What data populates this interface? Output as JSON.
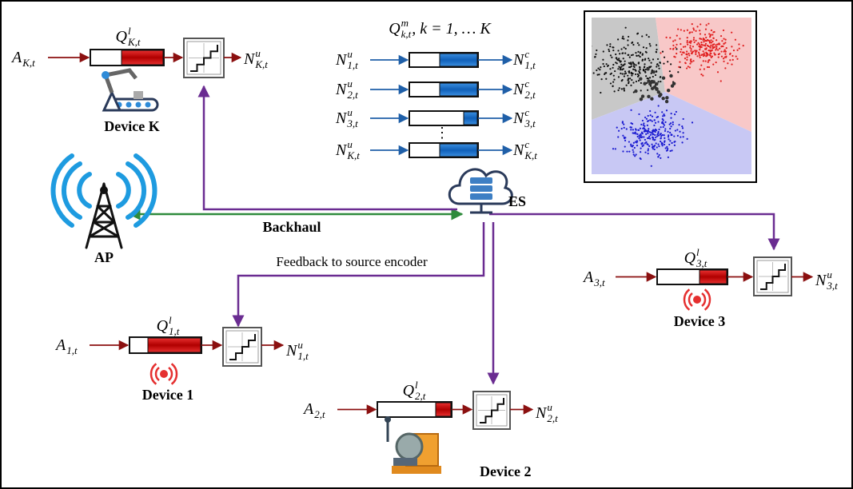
{
  "devices": [
    {
      "name": "Device K",
      "arrival": {
        "base": "A",
        "sub": "K,t"
      },
      "queue": {
        "base": "Q",
        "sup": "l",
        "sub": "K,t"
      },
      "output": {
        "base": "N",
        "sup": "u",
        "sub": "K,t"
      }
    },
    {
      "name": "Device 1",
      "arrival": {
        "base": "A",
        "sub": "1,t"
      },
      "queue": {
        "base": "Q",
        "sup": "l",
        "sub": "1,t"
      },
      "output": {
        "base": "N",
        "sup": "u",
        "sub": "1,t"
      }
    },
    {
      "name": "Device 2",
      "arrival": {
        "base": "A",
        "sub": "2,t"
      },
      "queue": {
        "base": "Q",
        "sup": "l",
        "sub": "2,t"
      },
      "output": {
        "base": "N",
        "sup": "u",
        "sub": "2,t"
      }
    },
    {
      "name": "Device 3",
      "arrival": {
        "base": "A",
        "sub": "3,t"
      },
      "queue": {
        "base": "Q",
        "sup": "l",
        "sub": "3,t"
      },
      "output": {
        "base": "N",
        "sup": "u",
        "sub": "3,t"
      }
    }
  ],
  "edge_server": {
    "label": "ES",
    "queue_title": {
      "base": "Q",
      "sup": "m",
      "sub": "k,t",
      "suffix": ", k = 1, … K"
    },
    "queues": [
      {
        "input": {
          "base": "N",
          "sup": "u",
          "sub": "1,t"
        },
        "output": {
          "base": "N",
          "sup": "c",
          "sub": "1,t"
        }
      },
      {
        "input": {
          "base": "N",
          "sup": "u",
          "sub": "2,t"
        },
        "output": {
          "base": "N",
          "sup": "c",
          "sub": "2,t"
        }
      },
      {
        "input": {
          "base": "N",
          "sup": "u",
          "sub": "3,t"
        },
        "output": {
          "base": "N",
          "sup": "c",
          "sub": "3,t"
        }
      },
      {
        "input": {
          "base": "N",
          "sup": "u",
          "sub": "K,t"
        },
        "output": {
          "base": "N",
          "sup": "c",
          "sub": "K,t"
        }
      }
    ],
    "ellipsis": "⋮"
  },
  "access_point": {
    "label": "AP"
  },
  "links": {
    "backhaul": "Backhaul",
    "feedback": "Feedback to source encoder"
  }
}
